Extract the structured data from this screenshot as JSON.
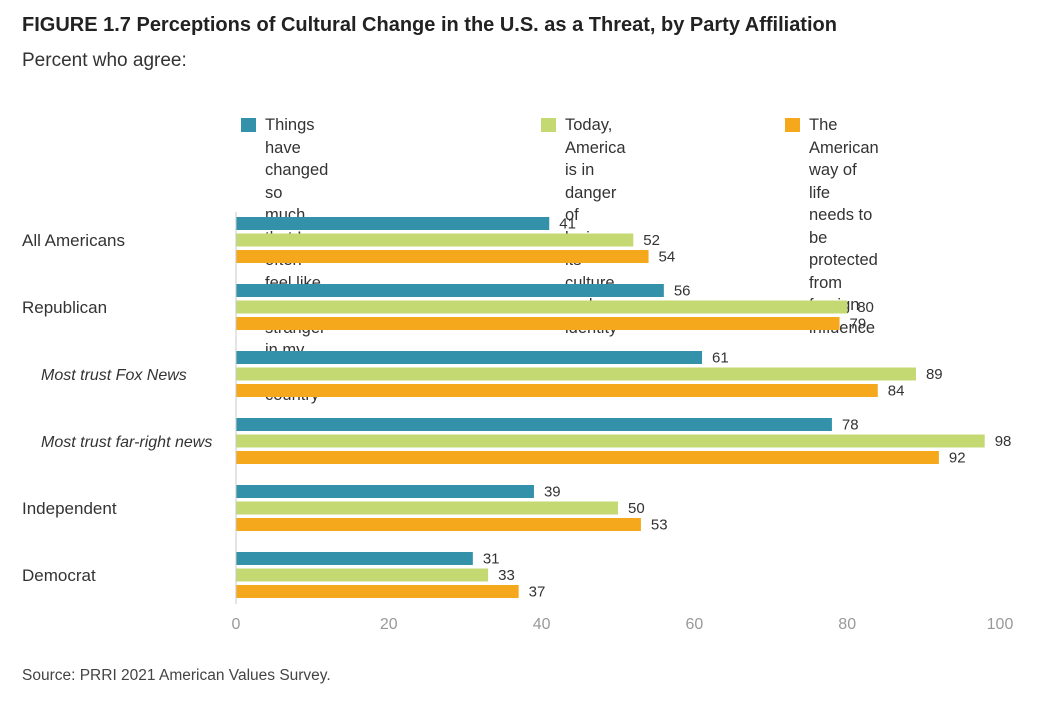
{
  "figure": {
    "title": "FIGURE 1.7  Perceptions of Cultural Change in the U.S. as a Threat, by Party Affiliation",
    "subtitle": "Percent who agree:",
    "source": "Source: PRRI 2021 American Values Survey."
  },
  "chart_data": {
    "type": "bar",
    "orientation": "horizontal",
    "categories": [
      "All Americans",
      "Republican",
      "Most trust Fox News",
      "Most trust far-right news",
      "Independent",
      "Democrat"
    ],
    "category_italic": [
      false,
      false,
      true,
      true,
      false,
      false
    ],
    "series": [
      {
        "name": "Things have changed so\nmuch that I often feel like a\nstranger in my own country",
        "color": "#3392a9",
        "values": [
          41,
          56,
          61,
          78,
          39,
          31
        ]
      },
      {
        "name": "Today, America is in\ndanger of losing its\nculture and identity",
        "color": "#c4d971",
        "values": [
          52,
          80,
          89,
          98,
          50,
          33
        ]
      },
      {
        "name": "The American way of life\nneeds to be protected\nfrom foreign influence",
        "color": "#f5a81c",
        "values": [
          54,
          79,
          84,
          92,
          53,
          37
        ]
      }
    ],
    "xlim": [
      0,
      100
    ],
    "xticks": [
      "0",
      "20",
      "40",
      "60",
      "80",
      "100"
    ],
    "xlabel": "",
    "ylabel": "",
    "grid": false,
    "legend_position": "top"
  }
}
